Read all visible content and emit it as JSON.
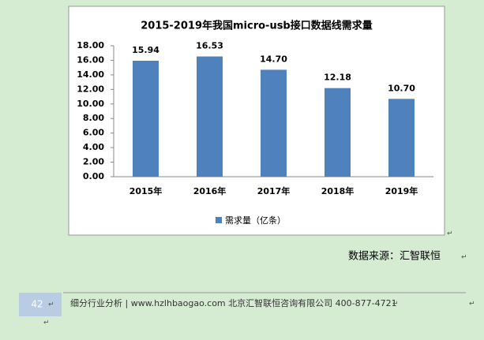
{
  "chart_data": {
    "type": "bar",
    "title": "2015-2019年我国micro-usb接口数据线需求量",
    "categories": [
      "2015年",
      "2016年",
      "2017年",
      "2018年",
      "2019年"
    ],
    "series": [
      {
        "name": "需求量（亿条）",
        "color": "#4f81bd",
        "values": [
          15.94,
          16.53,
          14.7,
          12.18,
          10.7
        ],
        "value_labels": [
          "15.94",
          "16.53",
          "14.70",
          "12.18",
          "10.70"
        ]
      }
    ],
    "ylim": [
      0,
      18
    ],
    "yticks": [
      {
        "value": 0,
        "label": "0.00"
      },
      {
        "value": 2,
        "label": "2.00"
      },
      {
        "value": 4,
        "label": "4.00"
      },
      {
        "value": 6,
        "label": "6.00"
      },
      {
        "value": 8,
        "label": "8.00"
      },
      {
        "value": 10,
        "label": "10.00"
      },
      {
        "value": 12,
        "label": "12.00"
      },
      {
        "value": 14,
        "label": "14.00"
      },
      {
        "value": 16,
        "label": "16.00"
      },
      {
        "value": 18,
        "label": "18.00"
      }
    ],
    "legend": "bottom"
  },
  "source": "数据来源：汇智联恒",
  "footer": {
    "page_number": "42",
    "text": "细分行业分析 | www.hzlhbaogao.com 北京汇智联恒咨询有限公司  400-877-4721"
  },
  "paragraph_mark": "↵"
}
